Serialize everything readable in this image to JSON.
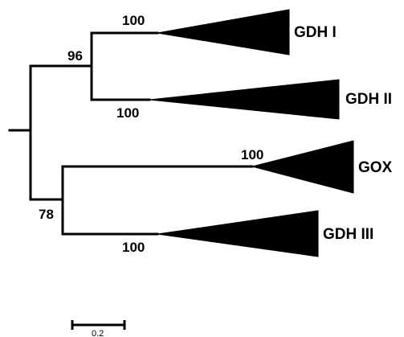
{
  "tree": {
    "clades": [
      {
        "label": "GDH I"
      },
      {
        "label": "GDH II"
      },
      {
        "label": "GOX"
      },
      {
        "label": "GDH III"
      }
    ],
    "support_values": {
      "gdh_i_branch": "100",
      "gdh_ii_branch": "100",
      "gox_branch": "100",
      "gdh_iii_branch": "100",
      "gdh_i_ii_node": "96",
      "gox_gdh_iii_node": "78"
    },
    "scale_bar": {
      "label": "0.2"
    }
  }
}
